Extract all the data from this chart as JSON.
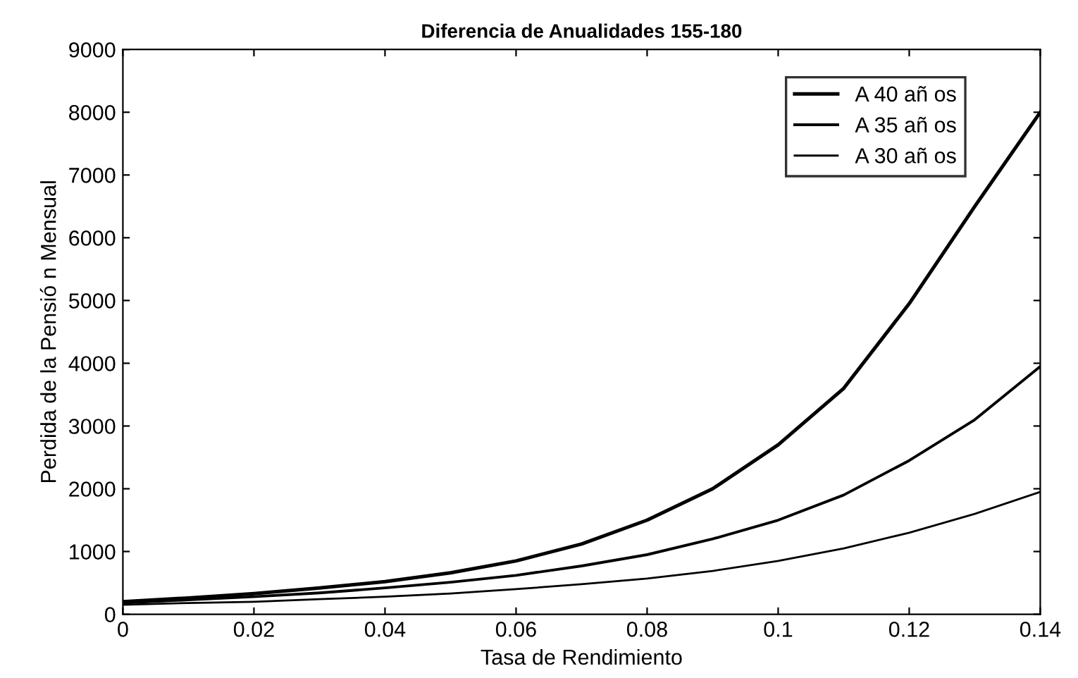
{
  "chart_data": {
    "type": "line",
    "title": "Diferencia de Anualidades 155-180",
    "xlabel": "Tasa de Rendimiento",
    "ylabel": "Perdida de la Pensió n Mensual",
    "x": [
      0,
      0.01,
      0.02,
      0.03,
      0.04,
      0.05,
      0.06,
      0.07,
      0.08,
      0.09,
      0.1,
      0.11,
      0.12,
      0.13,
      0.14
    ],
    "series": [
      {
        "name": "A 40 añ os",
        "color": "#000000",
        "values": [
          200,
          260,
          330,
          420,
          520,
          660,
          850,
          1120,
          1500,
          2000,
          2700,
          3600,
          4950,
          6500,
          8000
        ]
      },
      {
        "name": "A 35 añ os",
        "color": "#000000",
        "values": [
          180,
          230,
          280,
          340,
          420,
          510,
          620,
          770,
          950,
          1200,
          1500,
          1900,
          2450,
          3100,
          3950
        ]
      },
      {
        "name": "A 30 añ os",
        "color": "#000000",
        "values": [
          150,
          180,
          200,
          240,
          280,
          330,
          400,
          480,
          570,
          690,
          850,
          1050,
          1300,
          1600,
          1950
        ]
      }
    ],
    "xlim": [
      0,
      0.14
    ],
    "xticks": [
      0,
      0.02,
      0.04,
      0.06,
      0.08,
      0.1,
      0.12,
      0.14
    ],
    "ylim": [
      0,
      9000
    ],
    "yticks": [
      0,
      1000,
      2000,
      3000,
      4000,
      5000,
      6000,
      7000,
      8000,
      9000
    ],
    "grid": false,
    "legend": "top right",
    "marker": "none",
    "line_style": "solid"
  }
}
